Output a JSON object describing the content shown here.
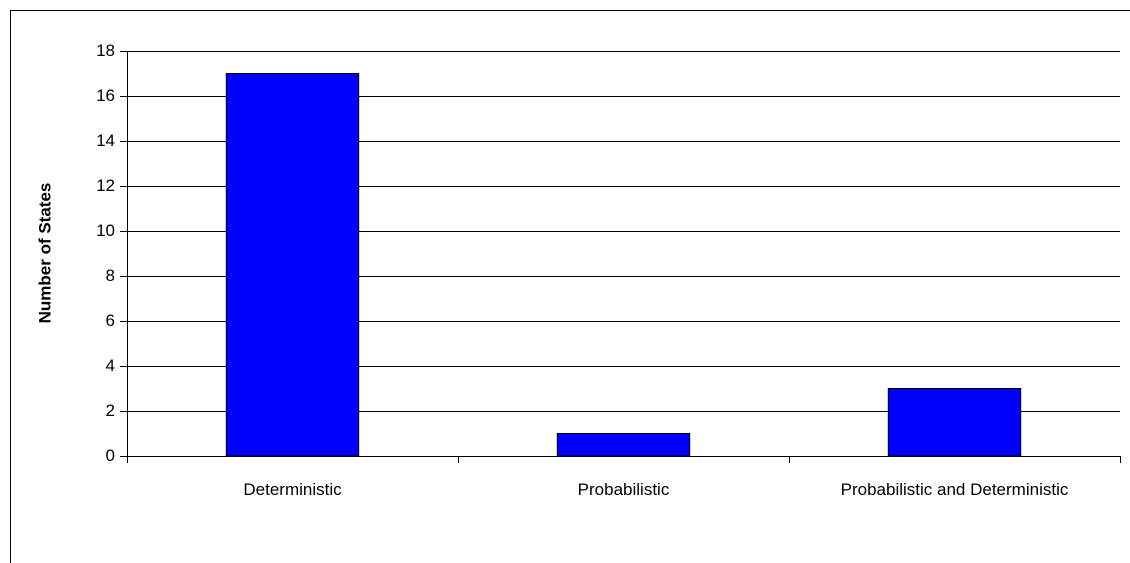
{
  "chart_data": {
    "type": "bar",
    "y_label": "Number of States",
    "categories": [
      "Deterministic",
      "Probabilistic",
      "Probabilistic and Deterministic"
    ],
    "values": [
      17,
      1,
      3
    ],
    "color": "#0000ff",
    "ylim": [
      0,
      18
    ],
    "yticks": [
      0,
      2,
      4,
      6,
      8,
      10,
      12,
      14,
      16,
      18
    ],
    "grid": true
  }
}
